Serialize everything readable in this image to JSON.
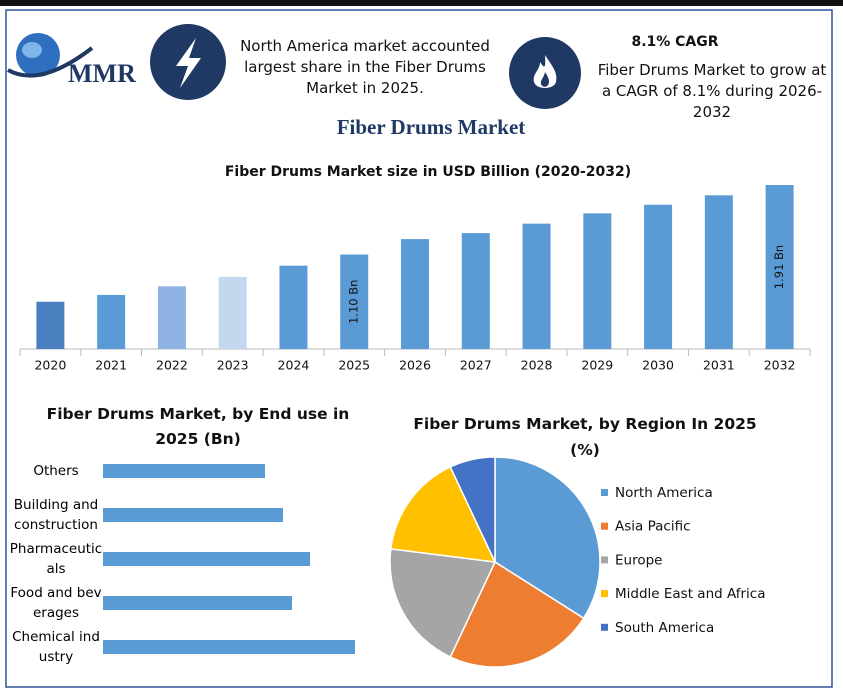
{
  "header": {
    "logo": "MMR",
    "region_note": "North America market accounted largest share in the Fiber Drums Market in 2025.",
    "cagr_title": "8.1% CAGR",
    "cagr_note": "Fiber Drums Market to grow at a CAGR of 8.1% during 2026-2032",
    "title": "Fiber Drums Market"
  },
  "chart_data": [
    {
      "type": "bar",
      "title": "Fiber Drums Market size in USD Billion (2020-2032)",
      "categories": [
        "2020",
        "2021",
        "2022",
        "2023",
        "2024",
        "2025",
        "2026",
        "2027",
        "2028",
        "2029",
        "2030",
        "2031",
        "2032"
      ],
      "values": [
        0.55,
        0.63,
        0.73,
        0.84,
        0.97,
        1.1,
        1.28,
        1.35,
        1.46,
        1.58,
        1.68,
        1.79,
        1.91
      ],
      "value_labels": [
        null,
        null,
        null,
        null,
        null,
        "1.10 Bn",
        null,
        null,
        null,
        null,
        null,
        null,
        "1.91 Bn"
      ],
      "colors": [
        "#4a7fbf",
        "#5b9bd5",
        "#8fb4e3",
        "#c5d7ef",
        "#5b9bd5",
        "#5b9bd5",
        "#5b9bd5",
        "#5b9bd5",
        "#5b9bd5",
        "#5b9bd5",
        "#5b9bd5",
        "#5b9bd5",
        "#5b9bd5"
      ]
    },
    {
      "type": "hbar",
      "title": "Fiber Drums Market, by End use in 2025 (Bn)",
      "categories": [
        "Others",
        "Building and construction",
        "Pharmaceuticals",
        "Food and beverages",
        "Chemical industry"
      ],
      "values": [
        0.18,
        0.2,
        0.23,
        0.21,
        0.28
      ],
      "color": "#5b9bd5"
    },
    {
      "type": "pie",
      "title": "Fiber Drums Market, by Region In 2025 (%)",
      "categories": [
        "North America",
        "Asia Pacific",
        "Europe",
        "Middle East and Africa",
        "South America"
      ],
      "values": [
        34,
        23,
        20,
        16,
        7
      ],
      "colors": [
        "#5b9bd5",
        "#ed7d31",
        "#a5a5a5",
        "#ffc000",
        "#4472c4"
      ],
      "legend": "right"
    }
  ]
}
